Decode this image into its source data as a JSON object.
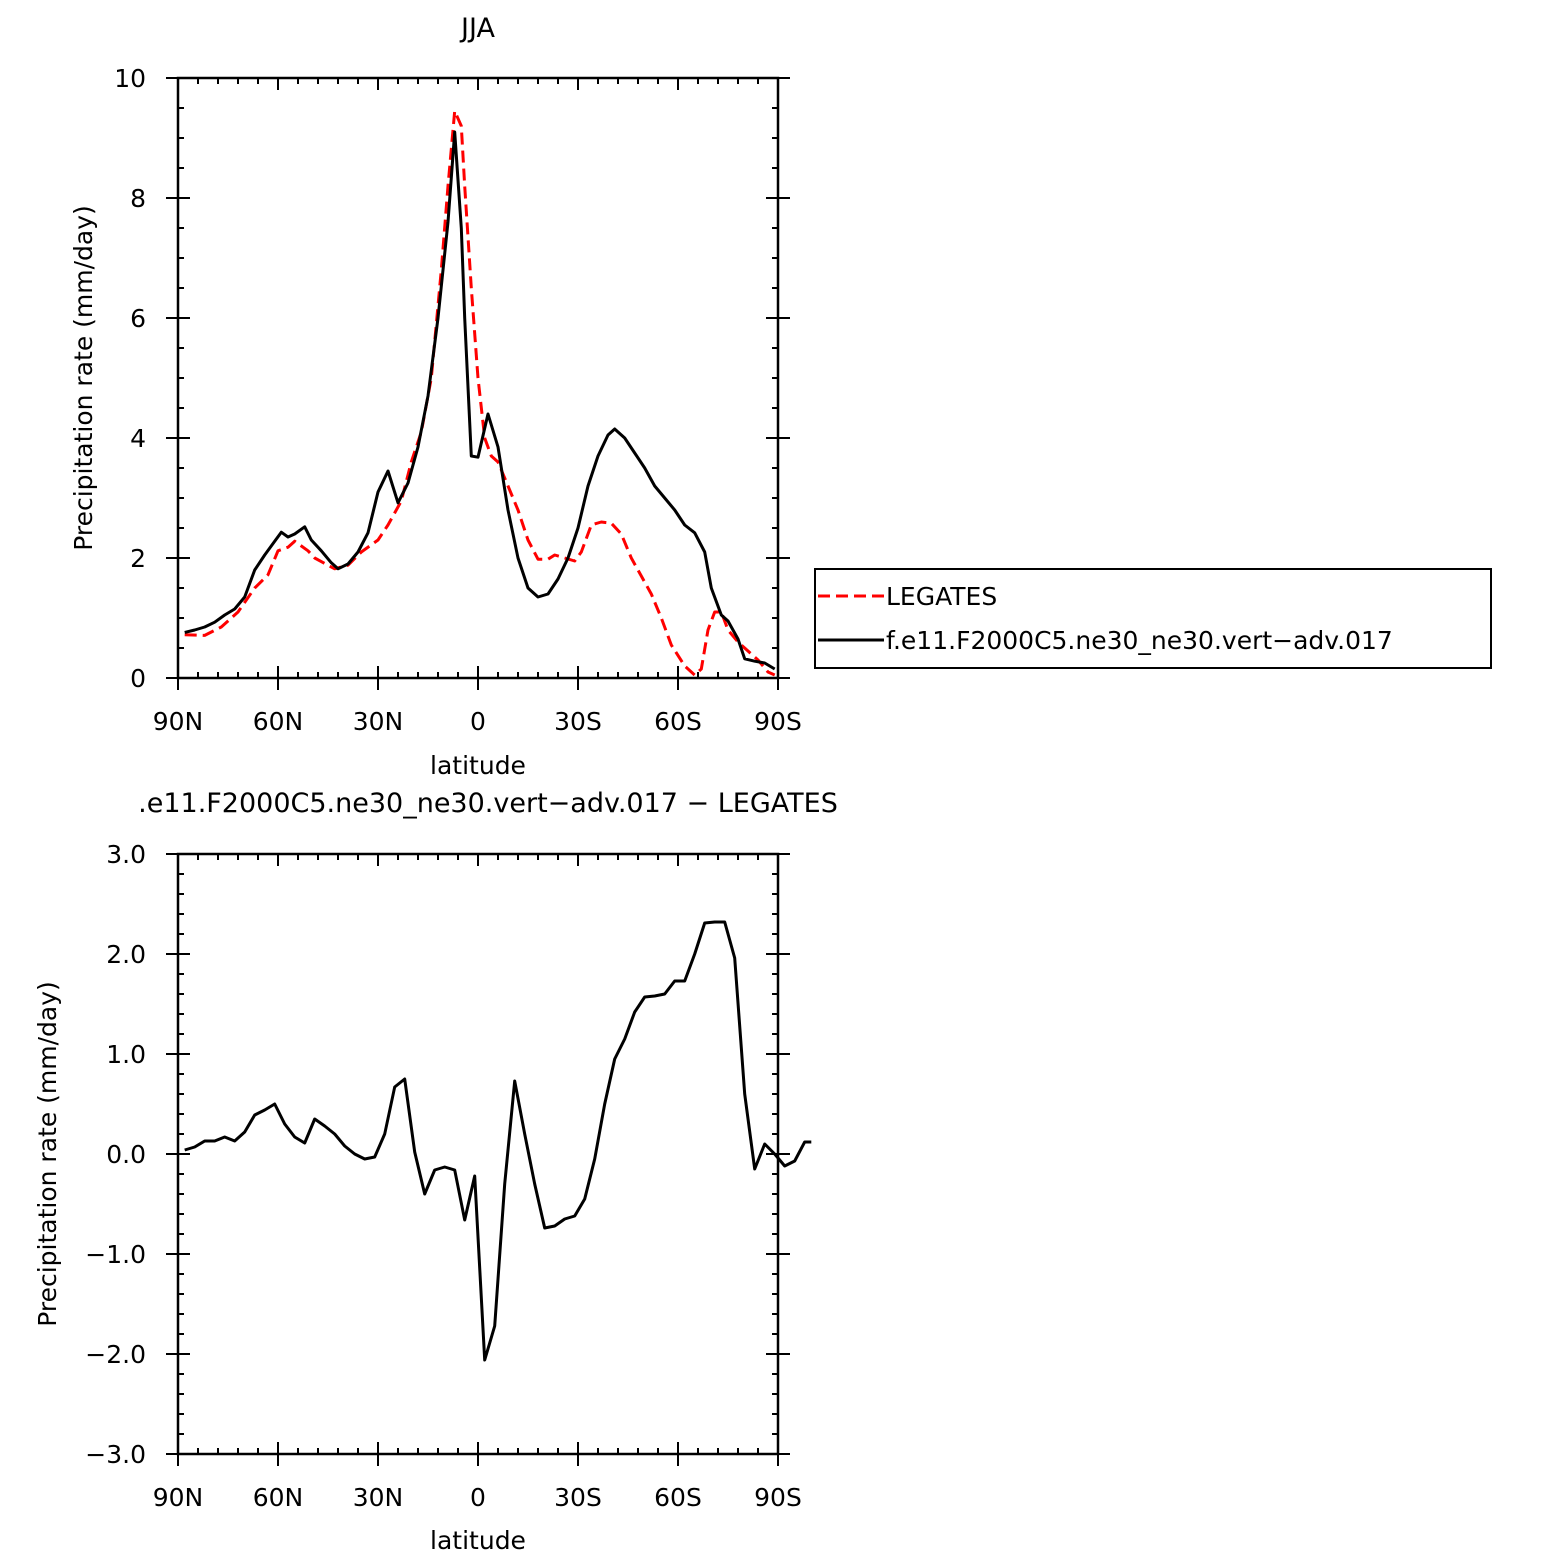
{
  "chart_data": [
    {
      "type": "line",
      "title": "JJA",
      "xlabel": "latitude",
      "ylabel": "Precipitation rate (mm/day)",
      "x_tick_labels": [
        "90N",
        "60N",
        "30N",
        "0",
        "30S",
        "60S",
        "90S"
      ],
      "x_tick_values": [
        -90,
        -60,
        -30,
        0,
        30,
        60,
        90
      ],
      "xlim": [
        -90,
        90
      ],
      "y_tick_labels": [
        "0",
        "2",
        "4",
        "6",
        "8",
        "10"
      ],
      "y_tick_values": [
        0,
        2,
        4,
        6,
        8,
        10
      ],
      "ylim": [
        0,
        10
      ],
      "legend_position": "right",
      "series": [
        {
          "name": "LEGATES",
          "color": "#ff0000",
          "dash": "dashed",
          "points": [
            [
              -88,
              0.72
            ],
            [
              -82,
              0.71
            ],
            [
              -77,
              0.85
            ],
            [
              -72,
              1.1
            ],
            [
              -67,
              1.5
            ],
            [
              -63,
              1.72
            ],
            [
              -60,
              2.12
            ],
            [
              -57,
              2.18
            ],
            [
              -55,
              2.28
            ],
            [
              -51,
              2.12
            ],
            [
              -49,
              2.0
            ],
            [
              -45,
              1.88
            ],
            [
              -43,
              1.82
            ],
            [
              -39,
              1.88
            ],
            [
              -35,
              2.1
            ],
            [
              -30,
              2.3
            ],
            [
              -27,
              2.55
            ],
            [
              -23,
              2.95
            ],
            [
              -20,
              3.6
            ],
            [
              -17,
              4.1
            ],
            [
              -14,
              5.0
            ],
            [
              -11,
              6.8
            ],
            [
              -9,
              8.2
            ],
            [
              -7,
              9.45
            ],
            [
              -5,
              9.2
            ],
            [
              -4,
              8.2
            ],
            [
              -2,
              6.5
            ],
            [
              0,
              5.0
            ],
            [
              2,
              4.0
            ],
            [
              4,
              3.7
            ],
            [
              6,
              3.6
            ],
            [
              9,
              3.2
            ],
            [
              12,
              2.8
            ],
            [
              15,
              2.3
            ],
            [
              18,
              1.98
            ],
            [
              21,
              1.98
            ],
            [
              23,
              2.05
            ],
            [
              26,
              2.0
            ],
            [
              29,
              1.95
            ],
            [
              31,
              2.1
            ],
            [
              34,
              2.55
            ],
            [
              37,
              2.6
            ],
            [
              40,
              2.58
            ],
            [
              43,
              2.4
            ],
            [
              46,
              2.0
            ],
            [
              49,
              1.7
            ],
            [
              52,
              1.4
            ],
            [
              55,
              1.0
            ],
            [
              58,
              0.55
            ],
            [
              62,
              0.2
            ],
            [
              65,
              0.05
            ],
            [
              67,
              0.15
            ],
            [
              69,
              0.8
            ],
            [
              71,
              1.1
            ],
            [
              73,
              1.1
            ],
            [
              75,
              0.8
            ],
            [
              78,
              0.6
            ],
            [
              81,
              0.45
            ],
            [
              84,
              0.3
            ],
            [
              87,
              0.1
            ],
            [
              89,
              0.05
            ]
          ]
        },
        {
          "name": "f.e11.F2000C5.ne30_ne30.vert−adv.017",
          "color": "#000000",
          "dash": "solid",
          "points": [
            [
              -88,
              0.76
            ],
            [
              -85,
              0.8
            ],
            [
              -82,
              0.85
            ],
            [
              -79,
              0.93
            ],
            [
              -76,
              1.05
            ],
            [
              -73,
              1.15
            ],
            [
              -70,
              1.35
            ],
            [
              -67,
              1.8
            ],
            [
              -64,
              2.05
            ],
            [
              -61,
              2.28
            ],
            [
              -59,
              2.43
            ],
            [
              -57,
              2.35
            ],
            [
              -55,
              2.4
            ],
            [
              -52,
              2.52
            ],
            [
              -50,
              2.3
            ],
            [
              -47,
              2.12
            ],
            [
              -44,
              1.92
            ],
            [
              -42,
              1.82
            ],
            [
              -39,
              1.9
            ],
            [
              -36,
              2.1
            ],
            [
              -33,
              2.42
            ],
            [
              -30,
              3.1
            ],
            [
              -27,
              3.45
            ],
            [
              -24,
              2.92
            ],
            [
              -21,
              3.25
            ],
            [
              -18,
              3.85
            ],
            [
              -15,
              4.7
            ],
            [
              -12,
              6.0
            ],
            [
              -9,
              7.6
            ],
            [
              -7,
              9.1
            ],
            [
              -5,
              7.5
            ],
            [
              -4,
              6.0
            ],
            [
              -2,
              3.7
            ],
            [
              0,
              3.68
            ],
            [
              3,
              4.4
            ],
            [
              6,
              3.85
            ],
            [
              9,
              2.8
            ],
            [
              12,
              2.0
            ],
            [
              15,
              1.5
            ],
            [
              18,
              1.35
            ],
            [
              21,
              1.4
            ],
            [
              24,
              1.65
            ],
            [
              27,
              2.0
            ],
            [
              30,
              2.5
            ],
            [
              33,
              3.2
            ],
            [
              36,
              3.7
            ],
            [
              39,
              4.05
            ],
            [
              41,
              4.15
            ],
            [
              44,
              4.0
            ],
            [
              47,
              3.75
            ],
            [
              50,
              3.5
            ],
            [
              53,
              3.2
            ],
            [
              56,
              3.0
            ],
            [
              59,
              2.8
            ],
            [
              62,
              2.55
            ],
            [
              65,
              2.42
            ],
            [
              68,
              2.1
            ],
            [
              70,
              1.5
            ],
            [
              73,
              1.05
            ],
            [
              75,
              0.95
            ],
            [
              78,
              0.65
            ],
            [
              80,
              0.32
            ],
            [
              83,
              0.28
            ],
            [
              86,
              0.25
            ],
            [
              89,
              0.15
            ]
          ]
        }
      ]
    },
    {
      "type": "line",
      "title": ".e11.F2000C5.ne30_ne30.vert−adv.017 − LEGATES",
      "xlabel": "latitude",
      "ylabel": "Precipitation rate (mm/day)",
      "x_tick_labels": [
        "90N",
        "60N",
        "30N",
        "0",
        "30S",
        "60S",
        "90S"
      ],
      "x_tick_values": [
        -90,
        -60,
        -30,
        0,
        30,
        60,
        90
      ],
      "xlim": [
        -90,
        90
      ],
      "y_tick_labels": [
        "−3.0",
        "−2.0",
        "−1.0",
        "0.0",
        "1.0",
        "2.0",
        "3.0"
      ],
      "y_tick_values": [
        -3,
        -2,
        -1,
        0,
        1,
        2,
        3
      ],
      "ylim": [
        -3,
        3
      ],
      "series": [
        {
          "color": "#000000",
          "dash": "solid",
          "points": [
            [
              -88,
              0.04
            ],
            [
              -85,
              0.07
            ],
            [
              -82,
              0.13
            ],
            [
              -79,
              0.13
            ],
            [
              -76,
              0.17
            ],
            [
              -73,
              0.13
            ],
            [
              -70,
              0.22
            ],
            [
              -67,
              0.39
            ],
            [
              -64,
              0.44
            ],
            [
              -61,
              0.5
            ],
            [
              -58,
              0.3
            ],
            [
              -55,
              0.17
            ],
            [
              -52,
              0.11
            ],
            [
              -49,
              0.35
            ],
            [
              -46,
              0.28
            ],
            [
              -43,
              0.2
            ],
            [
              -40,
              0.08
            ],
            [
              -37,
              0.0
            ],
            [
              -34,
              -0.05
            ],
            [
              -31,
              -0.03
            ],
            [
              -28,
              0.2
            ],
            [
              -25,
              0.67
            ],
            [
              -22,
              0.75
            ],
            [
              -19,
              0.02
            ],
            [
              -16,
              -0.4
            ],
            [
              -13,
              -0.16
            ],
            [
              -10,
              -0.13
            ],
            [
              -7,
              -0.16
            ],
            [
              -4,
              -0.66
            ],
            [
              -1,
              -0.22
            ],
            [
              2,
              -2.06
            ],
            [
              5,
              -1.72
            ],
            [
              8,
              -0.3
            ],
            [
              11,
              0.73
            ],
            [
              14,
              0.2
            ],
            [
              17,
              -0.3
            ],
            [
              20,
              -0.74
            ],
            [
              23,
              -0.72
            ],
            [
              26,
              -0.65
            ],
            [
              29,
              -0.62
            ],
            [
              32,
              -0.45
            ],
            [
              35,
              -0.05
            ],
            [
              38,
              0.5
            ],
            [
              41,
              0.95
            ],
            [
              44,
              1.15
            ],
            [
              47,
              1.42
            ],
            [
              50,
              1.57
            ],
            [
              53,
              1.58
            ],
            [
              56,
              1.6
            ],
            [
              59,
              1.73
            ],
            [
              62,
              1.73
            ],
            [
              65,
              2.0
            ],
            [
              68,
              2.31
            ],
            [
              71,
              2.32
            ],
            [
              74,
              2.32
            ],
            [
              77,
              1.96
            ],
            [
              80,
              0.6
            ],
            [
              83,
              -0.15
            ],
            [
              86,
              0.1
            ],
            [
              89,
              0.0
            ],
            [
              92,
              -0.12
            ],
            [
              95,
              -0.07
            ],
            [
              98,
              0.12
            ],
            [
              100,
              0.12
            ]
          ]
        }
      ]
    }
  ]
}
